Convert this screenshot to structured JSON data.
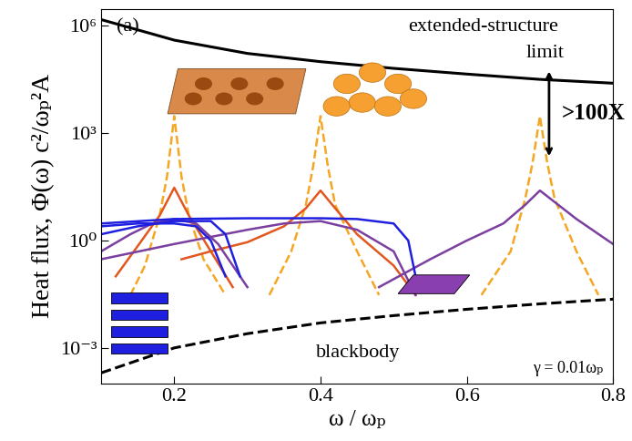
{
  "chart_data": {
    "type": "line",
    "xlabel": "ω / ωₚ",
    "ylabel": "Heat flux, Φ(ω) c²/ωₚ²A",
    "annotations": [
      "(a)",
      "extended-structure",
      "limit",
      ">100X",
      "blackbody",
      "γ = 0.01ωₚ"
    ],
    "log": "y",
    "xlim": [
      0.1,
      0.8
    ],
    "ylim": [
      0.0001,
      3000000
    ],
    "xticks": [
      0.2,
      0.4,
      0.6,
      0.8
    ],
    "yticks": [
      {
        "value": 0.001,
        "label": "10⁻³"
      },
      {
        "value": 1,
        "label": "10⁰"
      },
      {
        "value": 1000,
        "label": "10³"
      },
      {
        "value": 1000000,
        "label": "10⁶"
      }
    ],
    "series": [
      {
        "color": "#000000",
        "line_style": "solid",
        "x": [
          0.1,
          0.2,
          0.3,
          0.4,
          0.5,
          0.6,
          0.7,
          0.8
        ],
        "values": [
          1500000,
          400000,
          170000,
          100000,
          65000,
          45000,
          32000,
          25000
        ]
      },
      {
        "color": "#000000",
        "line_style": "dashed",
        "x": [
          0.1,
          0.2,
          0.3,
          0.4,
          0.5,
          0.6,
          0.7,
          0.8
        ],
        "values": [
          0.0002,
          0.001,
          0.0025,
          0.005,
          0.008,
          0.012,
          0.017,
          0.023
        ]
      },
      {
        "color": "#f5a623",
        "line_style": "dashed",
        "x": [
          0.14,
          0.16,
          0.18,
          0.19,
          0.2,
          0.21,
          0.22,
          0.24,
          0.27,
          0.3,
          0.33,
          0.36,
          0.38,
          0.39,
          0.4,
          0.41,
          0.42,
          0.45,
          0.48,
          0.55,
          0.62,
          0.66,
          0.68,
          0.69,
          0.7,
          0.71,
          0.72,
          0.75,
          0.78
        ],
        "values": [
          0.03,
          0.2,
          5,
          60,
          3000,
          60,
          5,
          0.3,
          0.03,
          null,
          0.03,
          0.5,
          10,
          120,
          3000,
          120,
          10,
          0.5,
          0.03,
          null,
          0.03,
          0.5,
          15,
          150,
          3000,
          150,
          15,
          0.5,
          0.03
        ]
      },
      {
        "color": "#e2571e",
        "line_style": "solid",
        "x": [
          0.12,
          0.15,
          0.18,
          0.2,
          0.22,
          0.25,
          0.28
        ],
        "values": [
          0.1,
          0.7,
          5,
          30,
          5,
          0.5,
          0.05
        ]
      },
      {
        "color": "#e2571e",
        "line_style": "solid",
        "x": [
          0.21,
          0.25,
          0.3,
          0.35,
          0.38,
          0.4,
          0.42,
          0.45,
          0.5,
          0.53
        ],
        "values": [
          0.3,
          0.5,
          0.9,
          2.5,
          8,
          25,
          8,
          1.5,
          0.2,
          0.03
        ]
      },
      {
        "color": "#7b3fa0",
        "line_style": "solid",
        "x": [
          0.1,
          0.14,
          0.17,
          0.2,
          0.23,
          0.26,
          0.3
        ],
        "values": [
          0.5,
          1.5,
          3,
          4,
          3,
          0.8,
          0.05
        ]
      },
      {
        "color": "#7b3fa0",
        "line_style": "solid",
        "x": [
          0.1,
          0.2,
          0.3,
          0.35,
          0.4,
          0.45,
          0.5,
          0.53
        ],
        "values": [
          0.3,
          0.8,
          2,
          3,
          3.5,
          2,
          0.5,
          0.03
        ]
      },
      {
        "color": "#7b3fa0",
        "line_style": "solid",
        "x": [
          0.48,
          0.55,
          0.6,
          0.65,
          0.68,
          0.7,
          0.72,
          0.75,
          0.8
        ],
        "values": [
          0.05,
          0.3,
          1,
          3,
          10,
          25,
          12,
          4,
          0.8
        ]
      },
      {
        "color": "#1f1fe0",
        "line_style": "solid",
        "x": [
          0.1,
          0.15,
          0.2,
          0.23,
          0.25,
          0.27
        ],
        "values": [
          2.5,
          3,
          3,
          2.5,
          1,
          0.1
        ]
      },
      {
        "color": "#1f1fe0",
        "line_style": "solid",
        "x": [
          0.1,
          0.15,
          0.2,
          0.25,
          0.27,
          0.29
        ],
        "values": [
          1.5,
          2.5,
          3.5,
          3.5,
          1.5,
          0.1
        ]
      },
      {
        "color": "#1f1fe0",
        "line_style": "solid",
        "x": [
          0.1,
          0.2,
          0.3,
          0.4,
          0.45,
          0.5,
          0.52,
          0.53
        ],
        "values": [
          3,
          4,
          4.2,
          4.2,
          4,
          3,
          1,
          0.1
        ]
      }
    ]
  }
}
